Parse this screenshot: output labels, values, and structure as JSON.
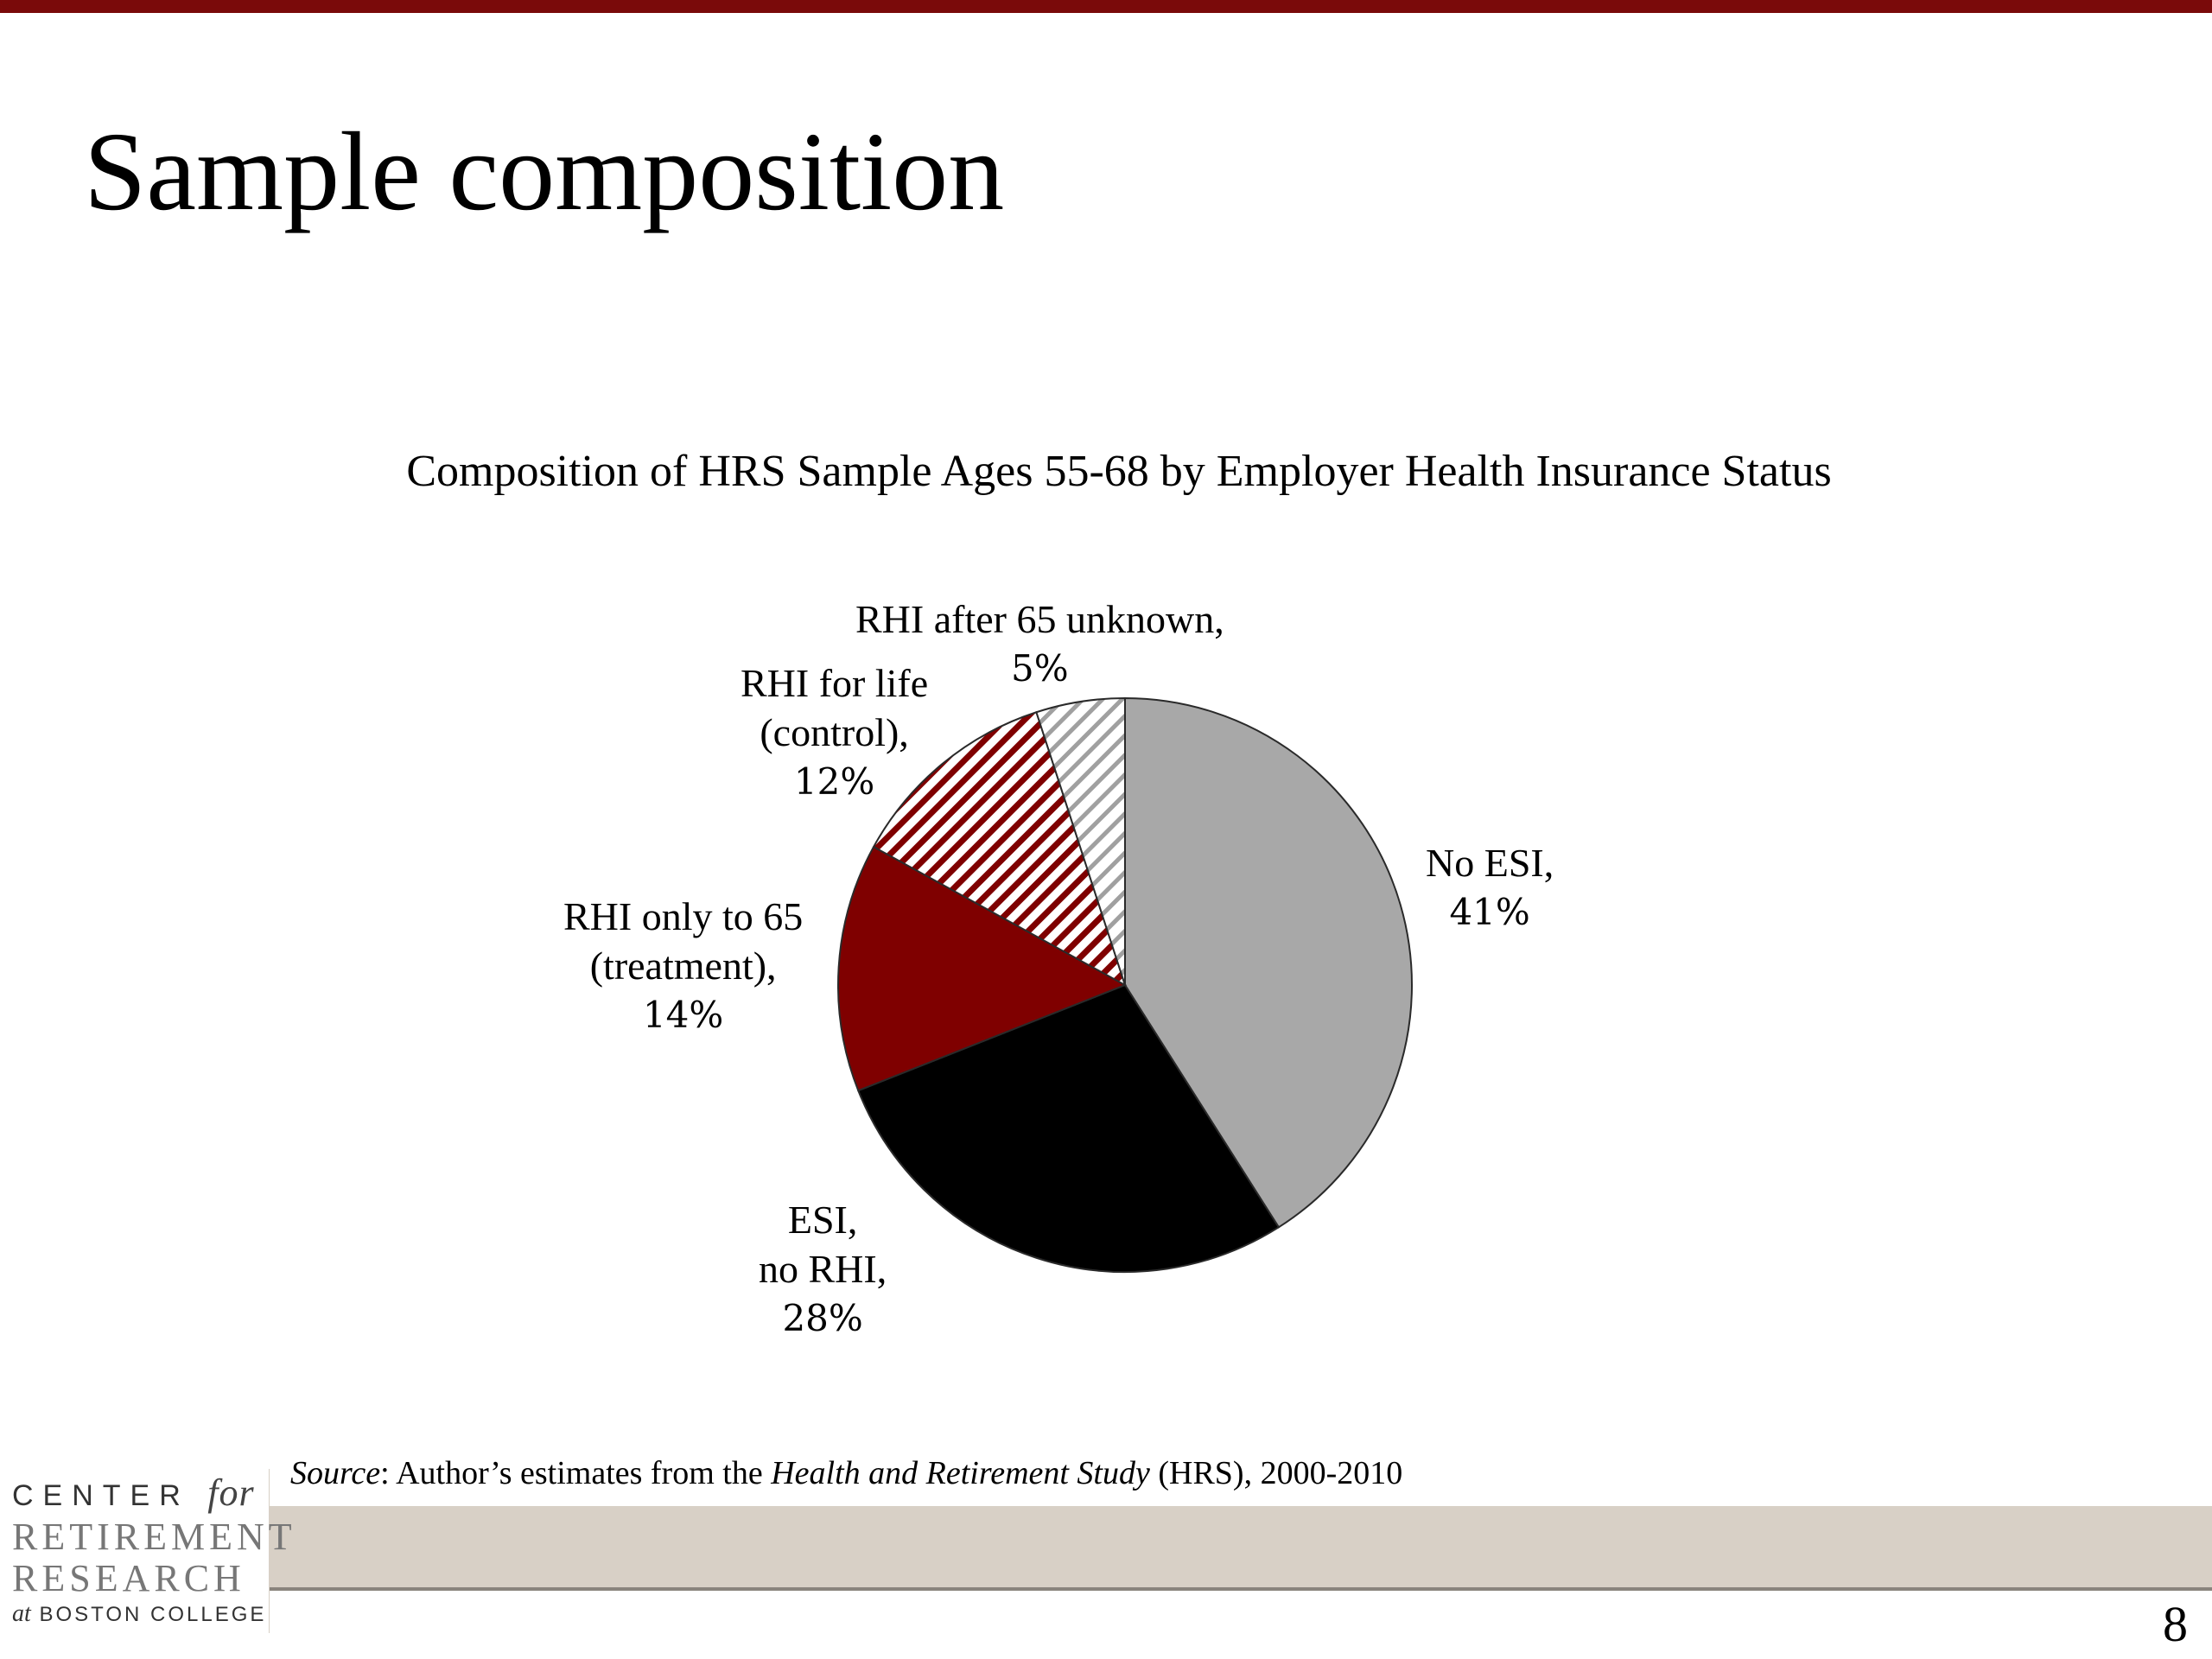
{
  "slide": {
    "title": "Sample composition",
    "page_number": "8"
  },
  "source": {
    "prefix": "Source",
    "middle": ": Author’s estimates from the ",
    "study": "Health and Retirement Study",
    "suffix": " (HRS), 2000-2010"
  },
  "logo": {
    "line1": "CENTER",
    "line1_for": "for",
    "line2": "RETIREMENT",
    "line3": "RESEARCH",
    "line4_at": "at",
    "line4": "BOSTON COLLEGE"
  },
  "chart_data": {
    "type": "pie",
    "title": "Composition of HRS Sample Ages 55-68 by Employer Health Insurance Status",
    "slices": [
      {
        "name": "No ESI,",
        "value": 41,
        "label": "41%",
        "fill": "#a8a8a8",
        "pattern": "none"
      },
      {
        "name": "ESI, no RHI,",
        "value": 28,
        "label": "28%",
        "fill": "#000000",
        "pattern": "none"
      },
      {
        "name": "RHI only to 65 (treatment),",
        "value": 14,
        "label": "14%",
        "fill": "#7f0000",
        "pattern": "none"
      },
      {
        "name": "RHI for life (control),",
        "value": 12,
        "label": "12%",
        "fill": "#7f0000",
        "pattern": "diagonal-hatch-dark-red"
      },
      {
        "name": "RHI after 65 unknown,",
        "value": 5,
        "label": "5%",
        "fill": "#a0a0a0",
        "pattern": "diagonal-hatch-gray"
      }
    ],
    "start_angle": "12 o'clock",
    "direction": "clockwise"
  }
}
